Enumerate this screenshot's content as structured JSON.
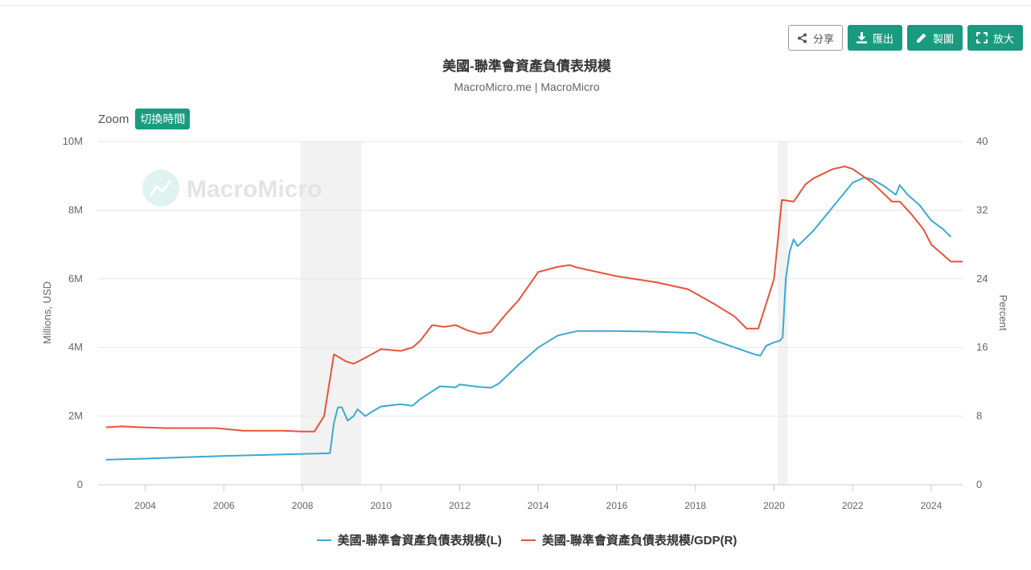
{
  "toolbar": {
    "share_label": "分享",
    "export_label": "匯出",
    "draw_label": "製圖",
    "enlarge_label": "放大"
  },
  "zoom": {
    "label": "Zoom",
    "button_label": "切換時間"
  },
  "watermark": "MacroMicro",
  "chart_data": {
    "type": "line",
    "title": "美國-聯準會資產負債表規模",
    "subtitle": "MacroMicro.me | MacroMicro",
    "xlabel": "",
    "xlim": [
      2002.8,
      2024.8
    ],
    "x_ticks": [
      2004,
      2006,
      2008,
      2010,
      2012,
      2014,
      2016,
      2018,
      2020,
      2022,
      2024
    ],
    "y_left": {
      "label": "Millions, USD",
      "ylim": [
        0,
        10000000
      ],
      "ticks": [
        0,
        2000000,
        4000000,
        6000000,
        8000000,
        10000000
      ],
      "tick_labels": [
        "0",
        "2M",
        "4M",
        "6M",
        "8M",
        "10M"
      ]
    },
    "y_right": {
      "label": "Percent",
      "ylim": [
        0,
        40
      ],
      "ticks": [
        0,
        8,
        16,
        24,
        32,
        40
      ],
      "tick_labels": [
        "0",
        "8",
        "16",
        "24",
        "32",
        "40"
      ]
    },
    "grid": true,
    "legend_position": "bottom",
    "recession_bands": [
      [
        2007.95,
        2009.5
      ],
      [
        2020.1,
        2020.35
      ]
    ],
    "series": [
      {
        "name": "美國-聯準會資產負債表規模(L)",
        "axis": "left",
        "color": "#3aaad2",
        "points": [
          [
            2003.0,
            730000
          ],
          [
            2004.0,
            760000
          ],
          [
            2005.0,
            800000
          ],
          [
            2006.0,
            840000
          ],
          [
            2007.0,
            870000
          ],
          [
            2008.0,
            900000
          ],
          [
            2008.7,
            920000
          ],
          [
            2008.8,
            1800000
          ],
          [
            2008.9,
            2250000
          ],
          [
            2009.0,
            2260000
          ],
          [
            2009.15,
            1870000
          ],
          [
            2009.3,
            2000000
          ],
          [
            2009.4,
            2200000
          ],
          [
            2009.5,
            2100000
          ],
          [
            2009.6,
            2000000
          ],
          [
            2009.8,
            2150000
          ],
          [
            2010.0,
            2280000
          ],
          [
            2010.5,
            2350000
          ],
          [
            2010.8,
            2300000
          ],
          [
            2011.0,
            2500000
          ],
          [
            2011.5,
            2870000
          ],
          [
            2011.9,
            2840000
          ],
          [
            2012.0,
            2920000
          ],
          [
            2012.5,
            2850000
          ],
          [
            2012.8,
            2830000
          ],
          [
            2013.0,
            2950000
          ],
          [
            2013.5,
            3500000
          ],
          [
            2014.0,
            4000000
          ],
          [
            2014.5,
            4350000
          ],
          [
            2015.0,
            4480000
          ],
          [
            2016.0,
            4480000
          ],
          [
            2017.0,
            4460000
          ],
          [
            2018.0,
            4420000
          ],
          [
            2018.5,
            4200000
          ],
          [
            2019.0,
            4000000
          ],
          [
            2019.5,
            3800000
          ],
          [
            2019.65,
            3760000
          ],
          [
            2019.8,
            4050000
          ],
          [
            2020.0,
            4150000
          ],
          [
            2020.15,
            4200000
          ],
          [
            2020.22,
            4300000
          ],
          [
            2020.3,
            6000000
          ],
          [
            2020.4,
            6800000
          ],
          [
            2020.5,
            7150000
          ],
          [
            2020.6,
            6950000
          ],
          [
            2021.0,
            7400000
          ],
          [
            2021.5,
            8100000
          ],
          [
            2022.0,
            8800000
          ],
          [
            2022.3,
            8950000
          ],
          [
            2022.5,
            8900000
          ],
          [
            2022.8,
            8700000
          ],
          [
            2023.1,
            8450000
          ],
          [
            2023.2,
            8730000
          ],
          [
            2023.4,
            8450000
          ],
          [
            2023.7,
            8150000
          ],
          [
            2024.0,
            7700000
          ],
          [
            2024.3,
            7450000
          ],
          [
            2024.5,
            7220000
          ]
        ]
      },
      {
        "name": "美國-聯準會資產負債表規模/GDP(R)",
        "axis": "right",
        "color": "#e8543a",
        "points": [
          [
            2003.0,
            6.7
          ],
          [
            2003.4,
            6.8
          ],
          [
            2003.9,
            6.7
          ],
          [
            2004.5,
            6.6
          ],
          [
            2005.0,
            6.6
          ],
          [
            2005.8,
            6.6
          ],
          [
            2006.5,
            6.3
          ],
          [
            2007.0,
            6.3
          ],
          [
            2007.5,
            6.3
          ],
          [
            2008.0,
            6.2
          ],
          [
            2008.3,
            6.2
          ],
          [
            2008.55,
            8.0
          ],
          [
            2008.8,
            15.2
          ],
          [
            2009.1,
            14.4
          ],
          [
            2009.3,
            14.1
          ],
          [
            2009.6,
            14.8
          ],
          [
            2010.0,
            15.8
          ],
          [
            2010.5,
            15.6
          ],
          [
            2010.8,
            16.0
          ],
          [
            2011.0,
            16.8
          ],
          [
            2011.3,
            18.6
          ],
          [
            2011.6,
            18.4
          ],
          [
            2011.9,
            18.6
          ],
          [
            2012.2,
            18.0
          ],
          [
            2012.5,
            17.6
          ],
          [
            2012.8,
            17.8
          ],
          [
            2013.2,
            20.0
          ],
          [
            2013.5,
            21.5
          ],
          [
            2014.0,
            24.8
          ],
          [
            2014.5,
            25.4
          ],
          [
            2014.8,
            25.6
          ],
          [
            2015.0,
            25.3
          ],
          [
            2016.0,
            24.3
          ],
          [
            2017.0,
            23.6
          ],
          [
            2017.8,
            22.8
          ],
          [
            2018.0,
            22.3
          ],
          [
            2018.5,
            21.0
          ],
          [
            2019.0,
            19.6
          ],
          [
            2019.3,
            18.2
          ],
          [
            2019.6,
            18.2
          ],
          [
            2020.0,
            24.0
          ],
          [
            2020.2,
            33.2
          ],
          [
            2020.5,
            33.0
          ],
          [
            2020.8,
            35.0
          ],
          [
            2021.0,
            35.7
          ],
          [
            2021.5,
            36.8
          ],
          [
            2021.8,
            37.1
          ],
          [
            2022.0,
            36.8
          ],
          [
            2022.5,
            35.2
          ],
          [
            2023.0,
            33.0
          ],
          [
            2023.2,
            33.0
          ],
          [
            2023.5,
            31.5
          ],
          [
            2023.8,
            29.8
          ],
          [
            2024.0,
            28.0
          ],
          [
            2024.5,
            26.0
          ],
          [
            2024.8,
            26.0
          ]
        ]
      }
    ]
  }
}
